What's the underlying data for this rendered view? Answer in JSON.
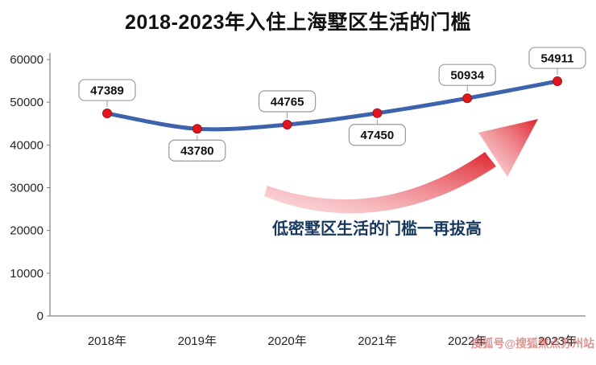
{
  "title": "2018-2023年入住上海墅区生活的门槛",
  "annotation": "低密墅区生活的门槛一再拔高",
  "watermark": "搜狐号@搜狐焦点苏州站",
  "colors": {
    "line": "#3e63ad",
    "marker": "#e0161e",
    "marker_stroke": "#a80f14",
    "axis": "#808080",
    "label_box_border": "#9b9b9b",
    "annotation_text": "#17375d",
    "watermark_text": "#c75450",
    "arrow_tail": "#f2929a",
    "arrow_head": "#dd1a24"
  },
  "chart_data": {
    "type": "line",
    "title": "2018-2023年入住上海墅区生活的门槛",
    "categories": [
      "2018年",
      "2019年",
      "2020年",
      "2021年",
      "2022年",
      "2023年"
    ],
    "values": [
      47389,
      43780,
      44765,
      47450,
      50934,
      54911
    ],
    "xlabel": "",
    "ylabel": "",
    "ylim": [
      0,
      60000
    ],
    "yticks": [
      0,
      10000,
      20000,
      30000,
      40000,
      50000,
      60000
    ],
    "grid": false,
    "legend_position": "none",
    "label_positions": [
      "above",
      "below",
      "above",
      "below",
      "above",
      "above"
    ],
    "annotation": "低密墅区生活的门槛一再拔高"
  }
}
